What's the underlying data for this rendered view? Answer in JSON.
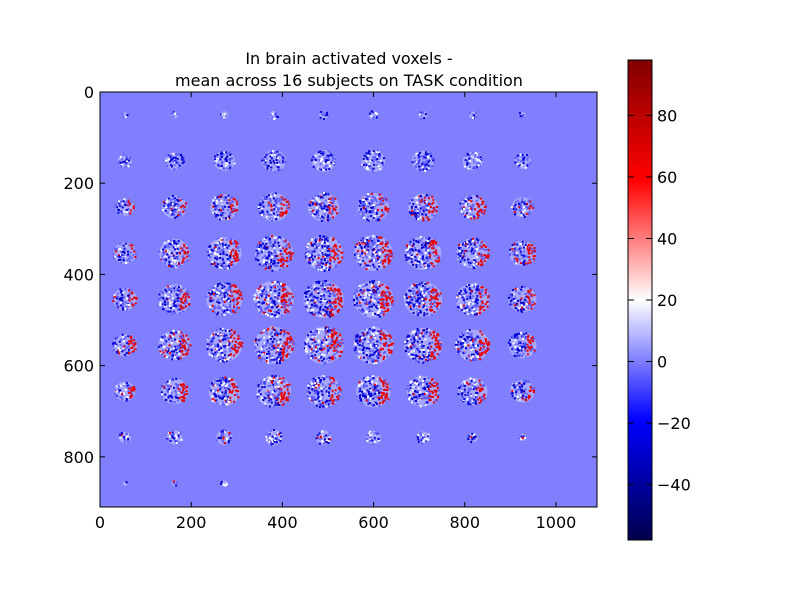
{
  "chart_data": {
    "type": "heatmap",
    "title": [
      "In brain activated voxels -",
      "mean across 16 subjects on TASK condition"
    ],
    "xlim": [
      0,
      1090
    ],
    "ylim": [
      910,
      0
    ],
    "x_ticks": [
      "0",
      "200",
      "400",
      "600",
      "800",
      "1000"
    ],
    "x_tick_values": [
      0,
      200,
      400,
      600,
      800,
      1000
    ],
    "y_ticks": [
      "0",
      "200",
      "400",
      "600",
      "800"
    ],
    "y_tick_values": [
      0,
      200,
      400,
      600,
      800
    ],
    "colorbar": {
      "colormap": "seismic",
      "range": [
        -58,
        98
      ],
      "ticks": [
        "−40",
        "−20",
        "0",
        "20",
        "40",
        "60",
        "80"
      ],
      "tick_values": [
        -40,
        -20,
        0,
        20,
        40,
        60,
        80
      ]
    },
    "grid": {
      "rows": 9,
      "cols": 10,
      "slice_spacing": [
        109,
        101
      ],
      "background_value": 0
    },
    "colors": {
      "background": "#8080ff",
      "positive": "#e60000",
      "negative": "#0000d0"
    }
  }
}
